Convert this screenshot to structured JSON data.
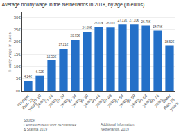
{
  "chart_data": {
    "type": "bar",
    "title": "Average hourly wage in the Netherlands in 2018, by age (in euros)",
    "ylabel": "Hourly wage in euros",
    "categories": [
      "Younger\nthan 15\nyears",
      "15-19\nyears",
      "20-24\nyears",
      "25-29\nyears",
      "30-34\nyears",
      "35-39\nyears",
      "40-44\nyears",
      "45-49\nyears",
      "50-54\nyears",
      "55-59\nyears",
      "60-64\nyears",
      "65-74\nyears",
      "Older\nthan 75\nyears"
    ],
    "values": [
      4.24,
      6.32,
      12.55,
      17.21,
      20.95,
      24.09,
      26.02,
      26.01,
      27.13,
      27.1,
      26.75,
      24.76,
      18.52
    ],
    "value_labels": [
      "4.24€",
      "6.32€",
      "12.55€",
      "17.21€",
      "20.95€",
      "24.09€",
      "26.02€",
      "26.01€",
      "27.13€",
      "27.10€",
      "26.75€",
      "24.76€",
      "18.52€"
    ],
    "data_labels": true,
    "color": "#2470c8",
    "ylim": [
      0,
      32
    ],
    "yticks": [
      {
        "value": 0,
        "label": "0€"
      },
      {
        "value": 5,
        "label": "5€"
      },
      {
        "value": 10,
        "label": "10€"
      },
      {
        "value": 15,
        "label": "15€"
      },
      {
        "value": 20,
        "label": "20€"
      },
      {
        "value": 25,
        "label": "25€"
      },
      {
        "value": 30,
        "label": "30€"
      }
    ],
    "grid": true,
    "annotations": [
      "Source:\nCentraal Bureau voor de Statistiek\n& Statista 2019",
      "Additional Information:\nNetherlands, 2019"
    ]
  }
}
